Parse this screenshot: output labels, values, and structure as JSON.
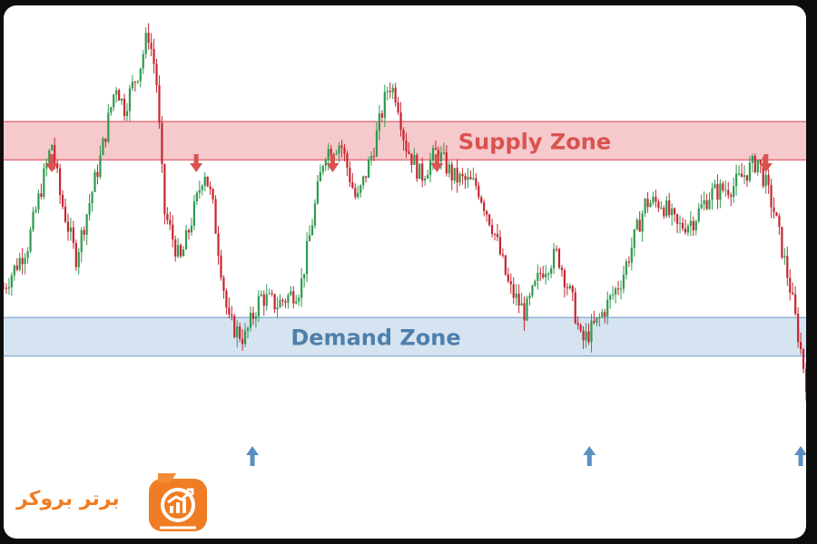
{
  "chart_data": {
    "type": "candlestick",
    "title": "",
    "xlabel": "",
    "ylabel": "",
    "grid": false,
    "ylim": [
      0,
      100
    ],
    "zones": [
      {
        "name": "Supply Zone",
        "range": [
          68,
          77
        ],
        "fill": "#f6c9cc",
        "stroke": "#e0737b",
        "text_color": "#d9534f"
      },
      {
        "name": "Demand Zone",
        "range": [
          22,
          31
        ],
        "fill": "#d6e3f1",
        "stroke": "#8fb2d6",
        "text_color": "#4f7fab"
      }
    ],
    "price_path": [
      {
        "x": 0,
        "y": 38
      },
      {
        "x": 3,
        "y": 48
      },
      {
        "x": 6,
        "y": 72
      },
      {
        "x": 7,
        "y": 60
      },
      {
        "x": 9,
        "y": 45
      },
      {
        "x": 12,
        "y": 68
      },
      {
        "x": 14,
        "y": 86
      },
      {
        "x": 15,
        "y": 80
      },
      {
        "x": 17,
        "y": 90
      },
      {
        "x": 18,
        "y": 98
      },
      {
        "x": 19,
        "y": 88
      },
      {
        "x": 20,
        "y": 56
      },
      {
        "x": 22,
        "y": 44
      },
      {
        "x": 24,
        "y": 58
      },
      {
        "x": 25,
        "y": 66
      },
      {
        "x": 26,
        "y": 58
      },
      {
        "x": 28,
        "y": 30
      },
      {
        "x": 30,
        "y": 26
      },
      {
        "x": 32,
        "y": 36
      },
      {
        "x": 34,
        "y": 34
      },
      {
        "x": 37,
        "y": 38
      },
      {
        "x": 40,
        "y": 70
      },
      {
        "x": 42,
        "y": 72
      },
      {
        "x": 44,
        "y": 58
      },
      {
        "x": 46,
        "y": 70
      },
      {
        "x": 48,
        "y": 86
      },
      {
        "x": 49,
        "y": 83
      },
      {
        "x": 50,
        "y": 72
      },
      {
        "x": 52,
        "y": 64
      },
      {
        "x": 54,
        "y": 70
      },
      {
        "x": 56,
        "y": 64
      },
      {
        "x": 59,
        "y": 62
      },
      {
        "x": 61,
        "y": 52
      },
      {
        "x": 63,
        "y": 38
      },
      {
        "x": 65,
        "y": 32
      },
      {
        "x": 67,
        "y": 42
      },
      {
        "x": 69,
        "y": 46
      },
      {
        "x": 71,
        "y": 34
      },
      {
        "x": 72,
        "y": 25
      },
      {
        "x": 74,
        "y": 30
      },
      {
        "x": 77,
        "y": 40
      },
      {
        "x": 80,
        "y": 58
      },
      {
        "x": 82,
        "y": 58
      },
      {
        "x": 84,
        "y": 52
      },
      {
        "x": 86,
        "y": 54
      },
      {
        "x": 88,
        "y": 60
      },
      {
        "x": 91,
        "y": 62
      },
      {
        "x": 94,
        "y": 68
      },
      {
        "x": 96,
        "y": 56
      },
      {
        "x": 98,
        "y": 38
      },
      {
        "x": 100,
        "y": 16
      }
    ],
    "supply_touches_x": [
      6,
      24,
      41,
      54,
      95
    ],
    "demand_touches_x": [
      31,
      73,
      100
    ],
    "bull_color": "#2f9a4f",
    "bear_color": "#c6262f"
  },
  "branding": {
    "logo_text": "برتر بروکر",
    "logo_color": "#f07d23",
    "logo_icon": "chart-growth-icon"
  }
}
